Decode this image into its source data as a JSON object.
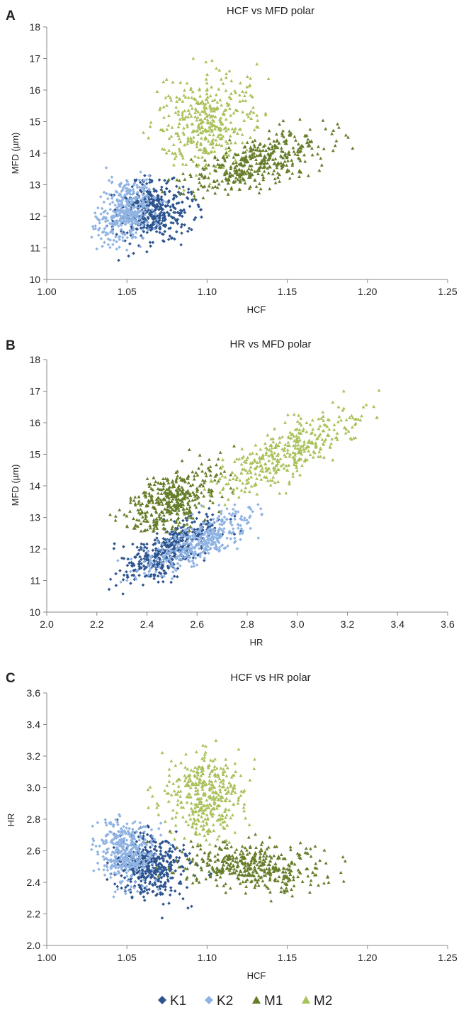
{
  "legend": [
    {
      "name": "K1",
      "color": "#2e5490",
      "marker": "diamond"
    },
    {
      "name": "K2",
      "color": "#8fb3e3",
      "marker": "diamond"
    },
    {
      "name": "M1",
      "color": "#667d2a",
      "marker": "triangle"
    },
    {
      "name": "M2",
      "color": "#a9c15a",
      "marker": "triangle"
    }
  ],
  "chart_data": [
    {
      "type": "scatter",
      "panel": "A",
      "title": "HCF vs MFD polar",
      "xlabel": "HCF",
      "ylabel": "MFD (µm)",
      "xlim": [
        1.0,
        1.25
      ],
      "ylim": [
        10,
        18
      ],
      "xticks": [
        "1.00",
        "1.05",
        "1.10",
        "1.15",
        "1.20",
        "1.25"
      ],
      "yticks": [
        "10",
        "11",
        "12",
        "13",
        "14",
        "15",
        "16",
        "17",
        "18"
      ],
      "grid": false,
      "series": [
        {
          "name": "K1",
          "color": "#2e5490",
          "marker": "diamond",
          "center": [
            1.067,
            12.2
          ],
          "spread": [
            0.011,
            0.5
          ],
          "corr": 0.2,
          "count": 420,
          "x_range": [
            1.035,
            1.15
          ],
          "y_range": [
            10.5,
            13.3
          ]
        },
        {
          "name": "K2",
          "color": "#8fb3e3",
          "marker": "diamond",
          "center": [
            1.049,
            12.1
          ],
          "spread": [
            0.009,
            0.55
          ],
          "corr": 0.25,
          "count": 380,
          "x_range": [
            1.025,
            1.08
          ],
          "y_range": [
            10.9,
            13.9
          ]
        },
        {
          "name": "M1",
          "color": "#667d2a",
          "marker": "triangle",
          "center": [
            1.13,
            13.7
          ],
          "spread": [
            0.022,
            0.5
          ],
          "corr": 0.6,
          "count": 420,
          "x_range": [
            1.06,
            1.21
          ],
          "y_range": [
            12.5,
            15.2
          ]
        },
        {
          "name": "M2",
          "color": "#a9c15a",
          "marker": "triangle",
          "center": [
            1.1,
            15.0
          ],
          "spread": [
            0.015,
            0.75
          ],
          "corr": 0.1,
          "count": 380,
          "x_range": [
            1.06,
            1.14
          ],
          "y_range": [
            12.8,
            17.2
          ]
        }
      ]
    },
    {
      "type": "scatter",
      "panel": "B",
      "title": "HR vs MFD polar",
      "xlabel": "HR",
      "ylabel": "MFD (µm)",
      "xlim": [
        2.0,
        3.6
      ],
      "ylim": [
        10,
        18
      ],
      "xticks": [
        "2.0",
        "2.2",
        "2.4",
        "2.6",
        "2.8",
        "3.0",
        "3.2",
        "3.4",
        "3.6"
      ],
      "yticks": [
        "10",
        "11",
        "12",
        "13",
        "14",
        "15",
        "16",
        "17",
        "18"
      ],
      "grid": false,
      "series": [
        {
          "name": "K1",
          "color": "#2e5490",
          "marker": "diamond",
          "center": [
            2.5,
            12.0
          ],
          "spread": [
            0.1,
            0.55
          ],
          "corr": 0.75,
          "count": 420,
          "x_range": [
            2.17,
            2.8
          ],
          "y_range": [
            10.5,
            13.3
          ]
        },
        {
          "name": "K2",
          "color": "#8fb3e3",
          "marker": "diamond",
          "center": [
            2.6,
            12.2
          ],
          "spread": [
            0.11,
            0.5
          ],
          "corr": 0.75,
          "count": 380,
          "x_range": [
            2.28,
            2.88
          ],
          "y_range": [
            10.9,
            13.9
          ]
        },
        {
          "name": "M1",
          "color": "#667d2a",
          "marker": "triangle",
          "center": [
            2.5,
            13.5
          ],
          "spread": [
            0.09,
            0.55
          ],
          "corr": 0.5,
          "count": 420,
          "x_range": [
            2.24,
            2.78
          ],
          "y_range": [
            12.5,
            15.7
          ]
        },
        {
          "name": "M2",
          "color": "#a9c15a",
          "marker": "triangle",
          "center": [
            2.95,
            15.0
          ],
          "spread": [
            0.15,
            0.7
          ],
          "corr": 0.8,
          "count": 380,
          "x_range": [
            2.62,
            3.34
          ],
          "y_range": [
            13.3,
            17.2
          ]
        }
      ]
    },
    {
      "type": "scatter",
      "panel": "C",
      "title": "HCF vs HR polar",
      "xlabel": "HCF",
      "ylabel": "HR",
      "xlim": [
        1.0,
        1.25
      ],
      "ylim": [
        2.0,
        3.6
      ],
      "xticks": [
        "1.00",
        "1.05",
        "1.10",
        "1.15",
        "1.20",
        "1.25"
      ],
      "yticks": [
        "2.0",
        "2.2",
        "2.4",
        "2.6",
        "2.8",
        "3.0",
        "3.2",
        "3.4",
        "3.6"
      ],
      "grid": false,
      "series": [
        {
          "name": "K1",
          "color": "#2e5490",
          "marker": "diamond",
          "center": [
            1.065,
            2.5
          ],
          "spread": [
            0.011,
            0.1
          ],
          "corr": -0.1,
          "count": 420,
          "x_range": [
            1.035,
            1.15
          ],
          "y_range": [
            2.17,
            2.8
          ]
        },
        {
          "name": "K2",
          "color": "#8fb3e3",
          "marker": "diamond",
          "center": [
            1.049,
            2.6
          ],
          "spread": [
            0.009,
            0.1
          ],
          "corr": -0.1,
          "count": 380,
          "x_range": [
            1.025,
            1.08
          ],
          "y_range": [
            2.3,
            2.88
          ]
        },
        {
          "name": "M1",
          "color": "#667d2a",
          "marker": "triangle",
          "center": [
            1.13,
            2.5
          ],
          "spread": [
            0.022,
            0.08
          ],
          "corr": -0.2,
          "count": 420,
          "x_range": [
            1.06,
            1.21
          ],
          "y_range": [
            2.24,
            2.8
          ]
        },
        {
          "name": "M2",
          "color": "#a9c15a",
          "marker": "triangle",
          "center": [
            1.1,
            2.95
          ],
          "spread": [
            0.012,
            0.14
          ],
          "corr": 0.0,
          "count": 380,
          "x_range": [
            1.06,
            1.13
          ],
          "y_range": [
            2.6,
            3.34
          ]
        }
      ]
    }
  ]
}
